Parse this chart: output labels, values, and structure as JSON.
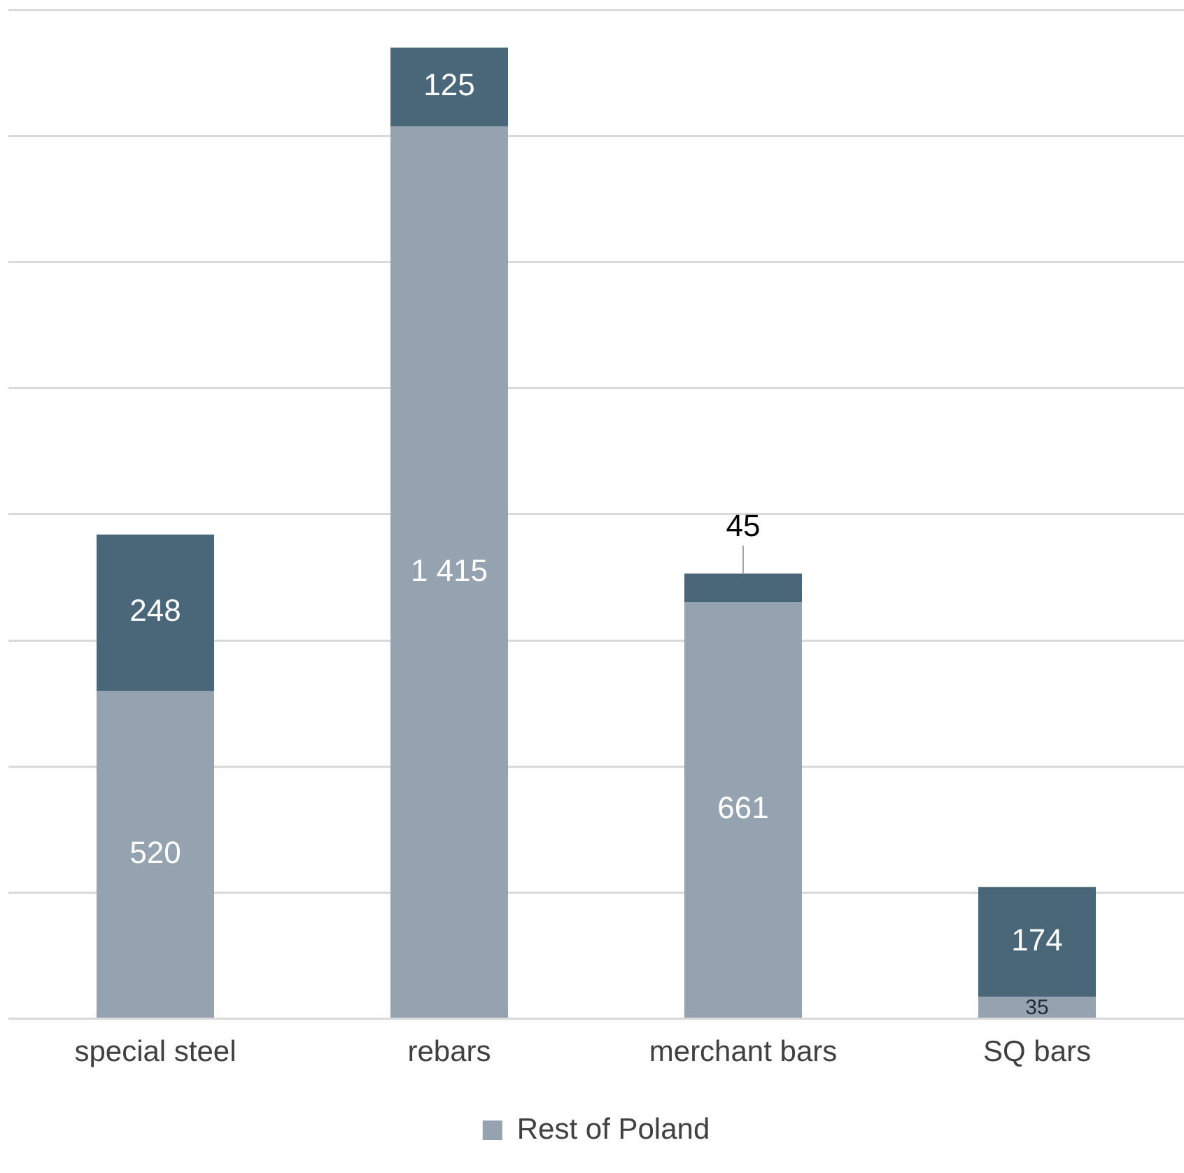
{
  "chart_data": {
    "type": "bar",
    "stacked": true,
    "categories": [
      "special steel",
      "rebars",
      "merchant bars",
      "SQ bars"
    ],
    "series": [
      {
        "name": "Rest of Poland",
        "color": "#94a3af",
        "values": [
          520,
          1415,
          661,
          35
        ]
      },
      {
        "color": "#4a6679",
        "values": [
          248,
          125,
          45,
          174
        ]
      }
    ],
    "tick_labels": "x",
    "grid": "y",
    "legend": "bottom",
    "data_labels": true
  }
}
